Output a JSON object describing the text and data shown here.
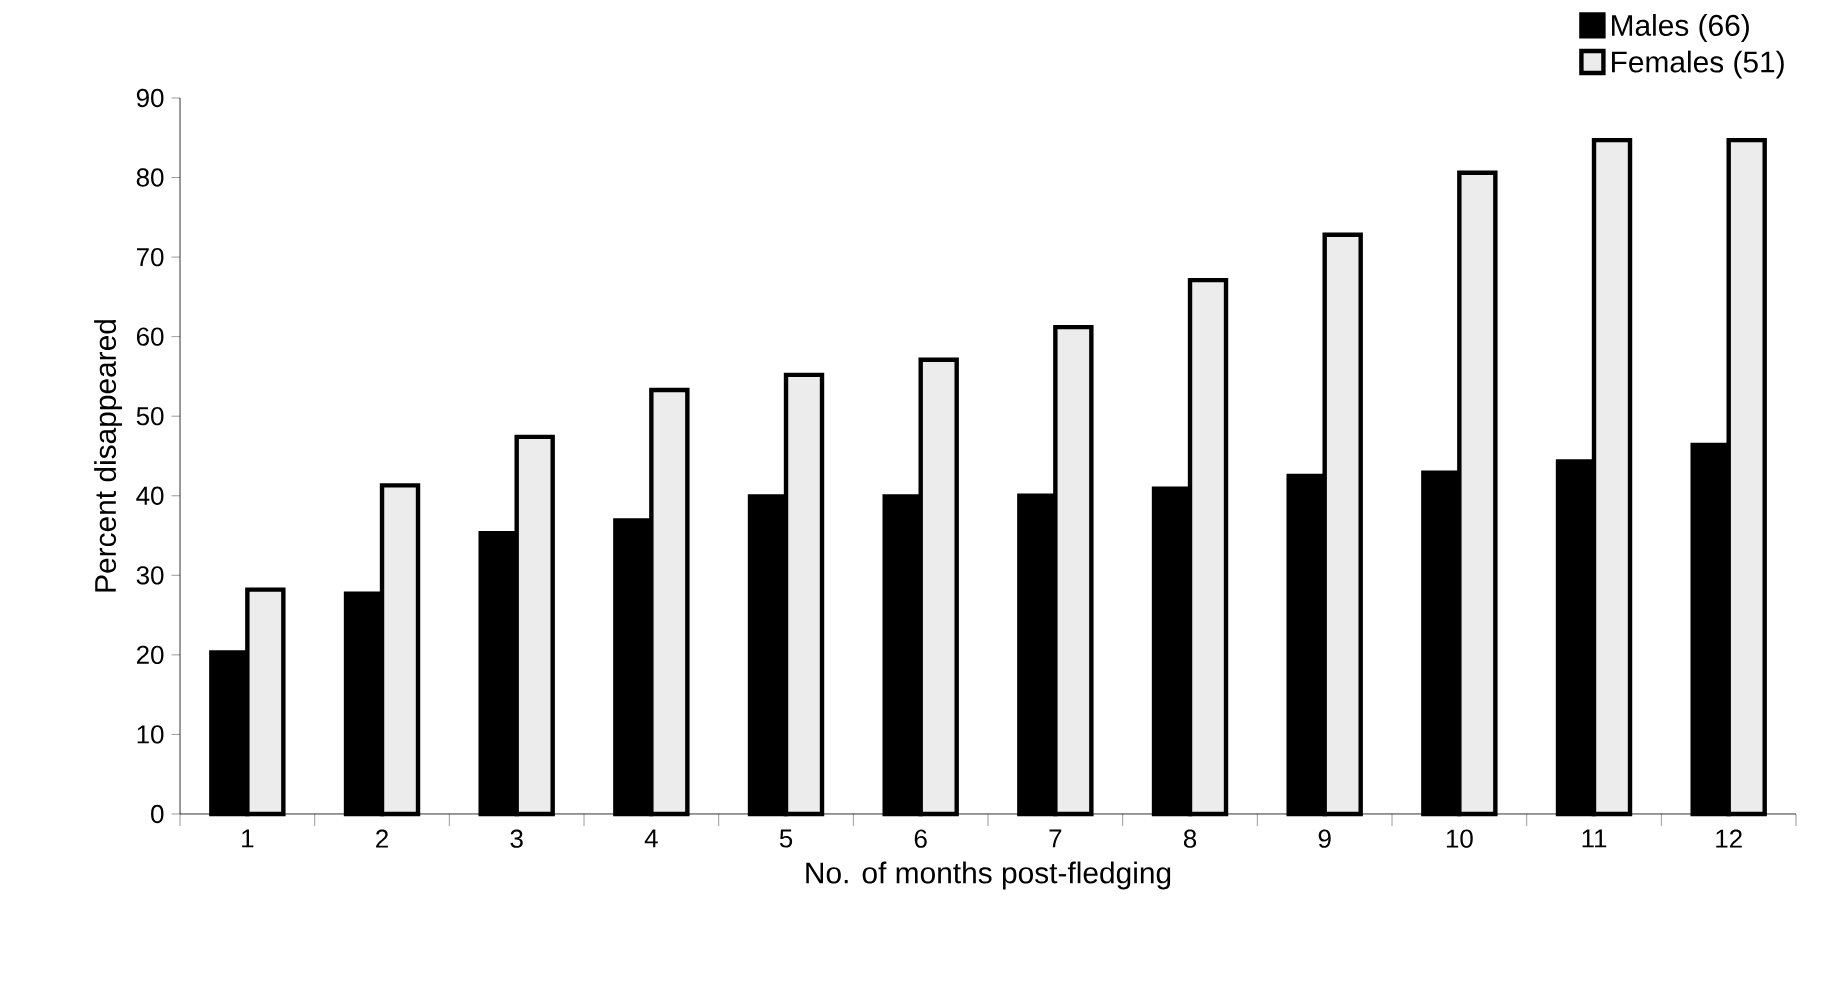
{
  "chart_data": {
    "type": "bar",
    "xlabel": "No. of months post-fledging",
    "ylabel": "Percent disappeared",
    "categories": [
      "1",
      "2",
      "3",
      "4",
      "5",
      "6",
      "7",
      "8",
      "9",
      "10",
      "11",
      "12"
    ],
    "series": [
      {
        "name": "Males (66)",
        "color": "#000000",
        "values": [
          20.3,
          27.7,
          35.3,
          36.9,
          39.9,
          39.9,
          40,
          40.9,
          42.5,
          42.9,
          44.3,
          46.4
        ]
      },
      {
        "name": "Females (51)",
        "color": "#ececec",
        "values": [
          28.2,
          41.3,
          47.4,
          53.3,
          55.2,
          57.1,
          61.2,
          67.1,
          72.8,
          80.6,
          84.7,
          84.7
        ]
      }
    ],
    "ylim": [
      0,
      90
    ],
    "yticks": [
      0,
      10,
      20,
      30,
      40,
      50,
      60,
      70,
      80,
      90
    ],
    "grid": false,
    "legend": "top right"
  }
}
